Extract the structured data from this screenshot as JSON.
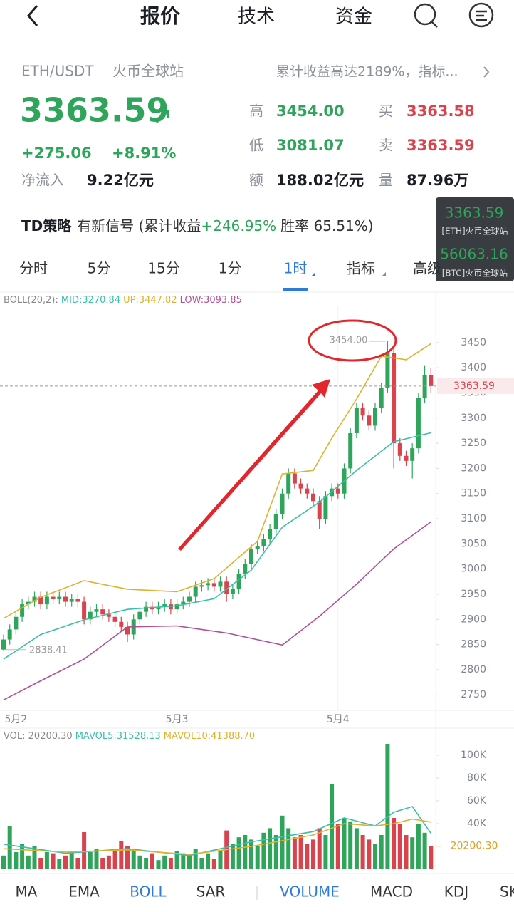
{
  "nav": {
    "tabs": [
      "报价",
      "技术",
      "资金"
    ]
  },
  "quote": {
    "pair": "ETH/USDT",
    "exchange": "火币全球站",
    "promo": "累计收益高达2189%，指标...",
    "price": "3363.59",
    "change": "+275.06",
    "change_pct": "+8.91%",
    "inflow_label": "净流入",
    "inflow": "9.22亿元",
    "stats": [
      {
        "label": "高",
        "value": "3454.00"
      },
      {
        "label": "低",
        "value": "3081.07"
      },
      {
        "label": "额",
        "value": "188.02亿元"
      },
      {
        "label": "买",
        "value": "3363.58"
      },
      {
        "label": "卖",
        "value": "3363.59"
      },
      {
        "label": "量",
        "value": "87.96万"
      }
    ]
  },
  "strategy": {
    "name": "TD策略",
    "text": "有新信号 (累计收益",
    "gain": "+246.95%",
    "rate": "胜率 65.51%)"
  },
  "widget": [
    {
      "price": "3363.59",
      "source": "[ETH]火币全球站"
    },
    {
      "price": "56063.16",
      "source": "[BTC]火币全球站"
    }
  ],
  "intervals": [
    "分时",
    "5分",
    "15分",
    "1分",
    "1时",
    "指标",
    "高级"
  ],
  "indicators": [
    "MA",
    "EMA",
    "BOLL",
    "SAR",
    "VOLUME",
    "MACD",
    "KDJ",
    "SK"
  ],
  "chart_data": [
    {
      "type": "candlestick",
      "legend_title": "BOLL(20,2):",
      "up_color": "#2ea55a",
      "down_color": "#d9434d",
      "categories": [
        null,
        null,
        "5月2",
        null,
        null,
        null,
        null,
        null,
        null,
        null,
        null,
        null,
        null,
        null,
        null,
        null,
        null,
        null,
        null,
        null,
        null,
        null,
        null,
        null,
        null,
        null,
        null,
        null,
        "5月3",
        null,
        null,
        null,
        null,
        null,
        null,
        null,
        null,
        null,
        null,
        null,
        null,
        null,
        null,
        null,
        null,
        null,
        null,
        null,
        null,
        null,
        null,
        null,
        null,
        null,
        "5月4",
        null,
        null,
        null,
        null,
        null,
        null,
        null,
        null,
        null,
        null,
        null,
        null,
        null,
        null,
        null
      ],
      "open": [
        2840,
        2860,
        2880,
        2905,
        2930,
        2935,
        2945,
        2930,
        2945,
        2940,
        2945,
        2935,
        2940,
        2935,
        2900,
        2915,
        2920,
        2910,
        2905,
        2895,
        2885,
        2870,
        2900,
        2915,
        2925,
        2920,
        2925,
        2930,
        2920,
        2930,
        2935,
        2945,
        2965,
        2968,
        2972,
        2965,
        2975,
        2950,
        2960,
        2990,
        3010,
        3040,
        3045,
        3060,
        3080,
        3110,
        3150,
        3190,
        3170,
        3160,
        3150,
        3135,
        3100,
        3145,
        3160,
        3150,
        3200,
        3270,
        3320,
        3305,
        3285,
        3320,
        3360,
        3430,
        3250,
        3225,
        3215,
        3240,
        3340,
        3385
      ],
      "high": [
        2870,
        2890,
        2915,
        2940,
        2945,
        2955,
        2955,
        2955,
        2955,
        2955,
        2955,
        2950,
        2950,
        2945,
        2925,
        2930,
        2930,
        2920,
        2915,
        2905,
        2895,
        2910,
        2925,
        2935,
        2935,
        2935,
        2940,
        2940,
        2940,
        2945,
        2955,
        2975,
        2978,
        2982,
        2982,
        2985,
        2985,
        2970,
        3000,
        3020,
        3050,
        3055,
        3070,
        3090,
        3120,
        3160,
        3200,
        3200,
        3180,
        3170,
        3160,
        3145,
        3155,
        3170,
        3170,
        3210,
        3280,
        3330,
        3330,
        3315,
        3330,
        3370,
        3454,
        3440,
        3260,
        3235,
        3250,
        3350,
        3405,
        3400
      ],
      "low": [
        2838.41,
        2850,
        2870,
        2895,
        2920,
        2925,
        2920,
        2920,
        2930,
        2930,
        2925,
        2925,
        2925,
        2890,
        2890,
        2905,
        2900,
        2895,
        2885,
        2875,
        2855,
        2860,
        2890,
        2905,
        2910,
        2910,
        2915,
        2910,
        2910,
        2920,
        2925,
        2935,
        2955,
        2958,
        2955,
        2955,
        2935,
        2940,
        2950,
        2980,
        3000,
        3030,
        3035,
        3050,
        3070,
        3100,
        3140,
        3160,
        3150,
        3140,
        3125,
        3080,
        3090,
        3135,
        3140,
        3140,
        3190,
        3260,
        3295,
        3275,
        3275,
        3310,
        3350,
        3200,
        3215,
        3205,
        3180,
        3230,
        3330,
        3350
      ],
      "close": [
        2860,
        2880,
        2905,
        2930,
        2935,
        2945,
        2930,
        2945,
        2940,
        2945,
        2935,
        2940,
        2935,
        2900,
        2915,
        2920,
        2910,
        2905,
        2895,
        2885,
        2870,
        2900,
        2915,
        2925,
        2920,
        2925,
        2930,
        2920,
        2930,
        2935,
        2945,
        2965,
        2968,
        2972,
        2965,
        2975,
        2950,
        2960,
        2990,
        3010,
        3040,
        3045,
        3060,
        3080,
        3110,
        3150,
        3190,
        3170,
        3160,
        3150,
        3135,
        3100,
        3145,
        3160,
        3150,
        3200,
        3270,
        3320,
        3305,
        3285,
        3320,
        3360,
        3430,
        3250,
        3225,
        3215,
        3240,
        3340,
        3385,
        3363.59
      ],
      "series": [
        {
          "name": "MID:3270.84",
          "color": "#3cbfa8",
          "x": [
            0,
            6,
            13,
            20,
            28,
            34,
            40,
            45,
            51,
            57,
            63,
            69
          ],
          "values": [
            2821,
            2870,
            2899,
            2920,
            2927,
            2941,
            2998,
            3083,
            3133,
            3196,
            3253,
            3270.84
          ]
        },
        {
          "name": "UP:3447.82",
          "color": "#e0b12e",
          "x": [
            0,
            6,
            13,
            20,
            28,
            34,
            41,
            45,
            50,
            53,
            57,
            61,
            65,
            69
          ],
          "values": [
            2902,
            2944,
            2977,
            2960,
            2955,
            2981,
            3055,
            3189,
            3196,
            3260,
            3338,
            3423,
            3416,
            3447.82
          ]
        },
        {
          "name": "LOW:3093.85",
          "color": "#b0509a",
          "x": [
            0,
            6,
            13,
            20,
            28,
            36,
            45,
            51,
            57,
            63,
            69
          ],
          "values": [
            2740,
            2778,
            2821,
            2885,
            2887,
            2873,
            2849,
            2906,
            2970,
            3040,
            3093.85
          ]
        }
      ],
      "ylim": [
        2722,
        3522
      ],
      "yticks": [
        2750,
        2800,
        2850,
        2900,
        2950,
        3000,
        3050,
        3100,
        3150,
        3200,
        3250,
        3300,
        3350,
        3400,
        3450
      ],
      "last_price": {
        "value": 3363.59,
        "label": "3363.59"
      },
      "high_label": "3454.00",
      "low_label": "2838.41"
    },
    {
      "type": "bar",
      "legend_title": "VOL: 20200.30",
      "values": [
        12000,
        37500,
        15000,
        22000,
        12000,
        20000,
        10000,
        15000,
        14000,
        9000,
        12000,
        16000,
        10000,
        32500,
        15000,
        18000,
        10000,
        12000,
        16000,
        25000,
        20000,
        18000,
        12000,
        10000,
        14000,
        8000,
        12000,
        10000,
        16000,
        14000,
        12000,
        18000,
        10000,
        14000,
        9000,
        16000,
        34000,
        22000,
        28000,
        30000,
        26000,
        20000,
        32000,
        36000,
        30000,
        47000,
        36000,
        28000,
        30000,
        22000,
        26000,
        36000,
        30000,
        75000,
        40000,
        45000,
        42000,
        36000,
        30000,
        26000,
        22000,
        30000,
        110000,
        45000,
        40000,
        30000,
        28000,
        40000,
        32000,
        20200.3
      ],
      "series": [
        {
          "name": "MAVOL5:31528.13",
          "color": "#3cbfa8",
          "x": [
            0,
            10,
            20,
            30,
            40,
            50,
            55,
            60,
            63,
            66,
            69
          ],
          "values": [
            22000,
            14000,
            18000,
            12000,
            24000,
            33000,
            45000,
            38000,
            50000,
            55000,
            31528.13
          ]
        },
        {
          "name": "MAVOL10:41388.70",
          "color": "#e0b12e",
          "x": [
            0,
            10,
            20,
            30,
            40,
            50,
            55,
            60,
            63,
            66,
            69
          ],
          "values": [
            18000,
            15000,
            17000,
            13000,
            20000,
            30000,
            40000,
            38000,
            40000,
            44000,
            41388.7
          ]
        }
      ],
      "ylim": [
        0,
        110000
      ],
      "yticks": [
        {
          "value": 40000,
          "label": "40K"
        },
        {
          "value": 60000,
          "label": "60K"
        },
        {
          "value": 80000,
          "label": "80K"
        },
        {
          "value": 100000,
          "label": "100K"
        }
      ],
      "last_value": {
        "value": 20200.3,
        "label": "20200.30"
      }
    }
  ]
}
